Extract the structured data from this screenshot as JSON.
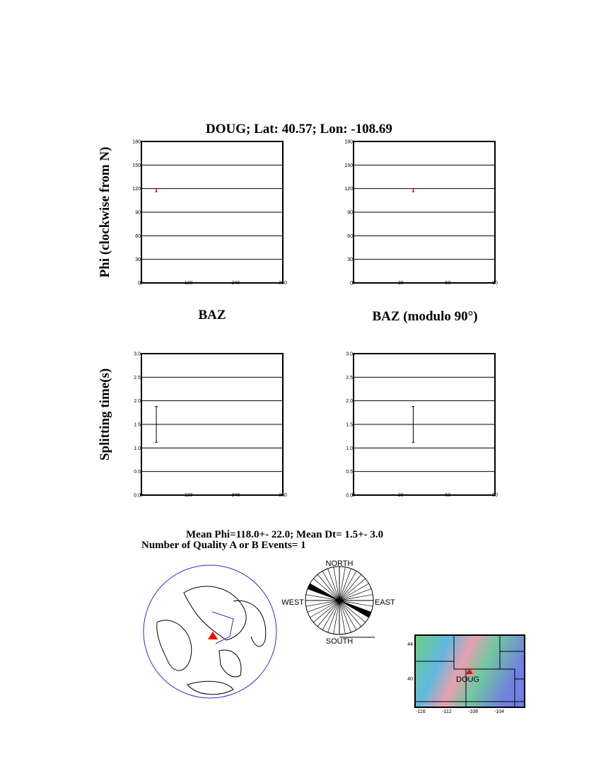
{
  "title": "DOUG; Lat:  40.57;  Lon: -108.69",
  "ylabel_top": "Phi (clockwise from N)",
  "ylabel_bottom": "Splitting time(s)",
  "xlabel_left": "BAZ",
  "xlabel_right": "BAZ (modulo 90°)",
  "summary_line1": "Mean Phi=118.0+- 22.0; Mean Dt=  1.5+-  3.0",
  "summary_line2": "Number of Quality A or B Events=  1",
  "chart_data": [
    {
      "type": "scatter",
      "id": "phi-vs-baz",
      "xlim": [
        0,
        360
      ],
      "ylim": [
        0,
        180
      ],
      "xticks": [
        "0",
        "120",
        "240",
        "360"
      ],
      "yticks": [
        "0",
        "30",
        "60",
        "90",
        "120",
        "150",
        "180"
      ],
      "grid": "horizontal",
      "points": [
        {
          "x": 38,
          "y": 118,
          "err": 2
        }
      ],
      "color": "#8b0000"
    },
    {
      "type": "scatter",
      "id": "phi-vs-baz-mod90",
      "xlim": [
        0,
        90
      ],
      "ylim": [
        0,
        180
      ],
      "xticks": [
        "0",
        "30",
        "60",
        "90"
      ],
      "yticks": [
        "0",
        "30",
        "60",
        "90",
        "120",
        "150",
        "180"
      ],
      "grid": "horizontal",
      "points": [
        {
          "x": 38,
          "y": 118,
          "err": 2
        }
      ],
      "color": "#8b0000"
    },
    {
      "type": "scatter",
      "id": "dt-vs-baz",
      "xlim": [
        0,
        360
      ],
      "ylim": [
        0,
        3
      ],
      "xticks": [
        "0",
        "120",
        "240",
        "360"
      ],
      "yticks": [
        "0.0",
        "0.5",
        "1.0",
        "1.5",
        "2.0",
        "2.5",
        "3.0"
      ],
      "grid": "horizontal",
      "points": [
        {
          "x": 38,
          "y": 1.5,
          "err": 0.38
        }
      ],
      "color": "#000000"
    },
    {
      "type": "scatter",
      "id": "dt-vs-baz-mod90",
      "xlim": [
        0,
        90
      ],
      "ylim": [
        0,
        3
      ],
      "xticks": [
        "0",
        "30",
        "60",
        "90"
      ],
      "yticks": [
        "0.0",
        "0.5",
        "1.0",
        "1.5",
        "2.0",
        "2.5",
        "3.0"
      ],
      "grid": "horizontal",
      "points": [
        {
          "x": 38,
          "y": 1.5,
          "err": 0.38
        }
      ],
      "color": "#000000"
    }
  ],
  "rose": {
    "labels": {
      "north": "NORTH",
      "south": "SOUTH",
      "east": "EAST",
      "west": "WEST"
    },
    "bin_width_deg": 10,
    "filled_bins": [
      110
    ]
  },
  "station_map": {
    "station": "DOUG",
    "station_color": "#ff0000",
    "yticks": [
      "44",
      "40"
    ],
    "xticks": [
      "-116",
      "-112",
      "-108",
      "-104"
    ]
  }
}
